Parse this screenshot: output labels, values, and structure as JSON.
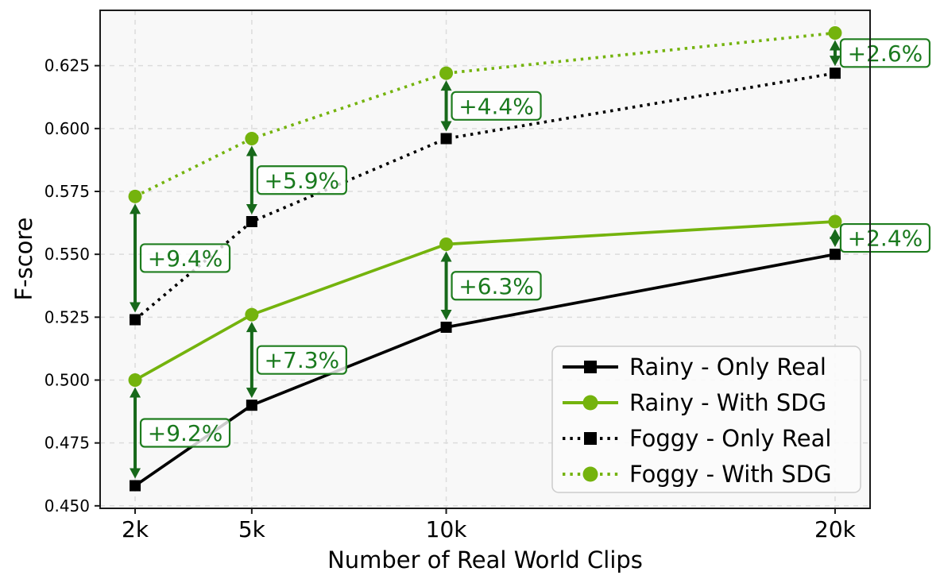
{
  "chart_data": {
    "type": "line",
    "title": "",
    "xlabel": "Number of Real World Clips",
    "ylabel": "F-score",
    "x": [
      2000,
      5000,
      10000,
      20000
    ],
    "x_tick_labels": [
      "2k",
      "5k",
      "10k",
      "20k"
    ],
    "y_ticks": [
      0.45,
      0.475,
      0.5,
      0.525,
      0.55,
      0.575,
      0.6,
      0.625
    ],
    "y_tick_labels": [
      "0.450",
      "0.475",
      "0.500",
      "0.525",
      "0.550",
      "0.575",
      "0.600",
      "0.625"
    ],
    "xlim": [
      1100,
      20900
    ],
    "ylim": [
      0.449,
      0.647
    ],
    "grid": true,
    "legend_position": "lower right",
    "series": [
      {
        "name": "Rainy - Only Real",
        "color": "#000000",
        "line_style": "solid",
        "marker": "square",
        "values": [
          0.458,
          0.49,
          0.521,
          0.55
        ]
      },
      {
        "name": "Rainy - With SDG",
        "color": "#74b30d",
        "line_style": "solid",
        "marker": "circle",
        "values": [
          0.5,
          0.526,
          0.554,
          0.563
        ]
      },
      {
        "name": "Foggy - Only Real",
        "color": "#000000",
        "line_style": "dotted",
        "marker": "square",
        "values": [
          0.524,
          0.563,
          0.596,
          0.622
        ]
      },
      {
        "name": "Foggy - With SDG",
        "color": "#74b30d",
        "line_style": "dotted",
        "marker": "circle",
        "values": [
          0.573,
          0.596,
          0.622,
          0.638
        ]
      }
    ],
    "annotations": [
      {
        "label": "+9.2%",
        "x": 2000,
        "from_series": 0,
        "to_series": 1
      },
      {
        "label": "+7.3%",
        "x": 5000,
        "from_series": 0,
        "to_series": 1
      },
      {
        "label": "+6.3%",
        "x": 10000,
        "from_series": 0,
        "to_series": 1
      },
      {
        "label": "+2.4%",
        "x": 20000,
        "from_series": 0,
        "to_series": 1
      },
      {
        "label": "+9.4%",
        "x": 2000,
        "from_series": 2,
        "to_series": 3
      },
      {
        "label": "+5.9%",
        "x": 5000,
        "from_series": 2,
        "to_series": 3
      },
      {
        "label": "+4.4%",
        "x": 10000,
        "from_series": 2,
        "to_series": 3
      },
      {
        "label": "+2.6%",
        "x": 20000,
        "from_series": 2,
        "to_series": 3
      }
    ],
    "colors": {
      "annotation_text": "#1a7a1e",
      "annotation_border": "#1e7d1e",
      "arrow": "#17691a",
      "plot_bg": "#f8f8f8",
      "grid": "#dcdcdc",
      "spine": "#1a1a1a",
      "legend_bg": "#fbfbfb",
      "legend_border": "#cccccc"
    }
  }
}
